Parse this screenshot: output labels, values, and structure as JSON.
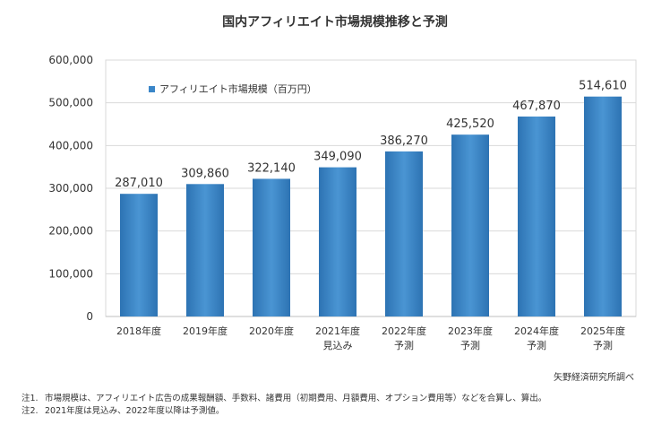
{
  "title": "国内アフィリエイト市場規模推移と予測",
  "source": "矢野経済研究所調べ",
  "notes": [
    {
      "label": "注1.",
      "text": "市場規模は、アフィリエイト広告の成果報酬額、手数料、諸費用（初期費用、月額費用、オプション費用等）などを合算し、算出。"
    },
    {
      "label": "注2.",
      "text": "2021年度は見込み、2022年度以降は予測値。"
    }
  ],
  "chart_data": {
    "type": "bar",
    "categories": [
      "2018年度",
      "2019年度",
      "2020年度",
      "2021年度",
      "2022年度",
      "2023年度",
      "2024年度",
      "2025年度"
    ],
    "category_sublabels": [
      "",
      "",
      "",
      "見込み",
      "予測",
      "予測",
      "予測",
      "予測"
    ],
    "series": [
      {
        "name": "アフィリエイト市場規模（百万円）",
        "values": [
          287010,
          309860,
          322140,
          349090,
          386270,
          425520,
          467870,
          514610
        ]
      }
    ],
    "data_labels": [
      "287,010",
      "309,860",
      "322,140",
      "349,090",
      "386,270",
      "425,520",
      "467,870",
      "514,610"
    ],
    "ylim": [
      0,
      600000
    ],
    "yticks": [
      0,
      100000,
      200000,
      300000,
      400000,
      500000,
      600000
    ],
    "ytick_labels": [
      "0",
      "100,000",
      "200,000",
      "300,000",
      "400,000",
      "500,000",
      "600,000"
    ],
    "grid": true,
    "legend_position": "top-left",
    "bar_color": "#3a86c8"
  }
}
